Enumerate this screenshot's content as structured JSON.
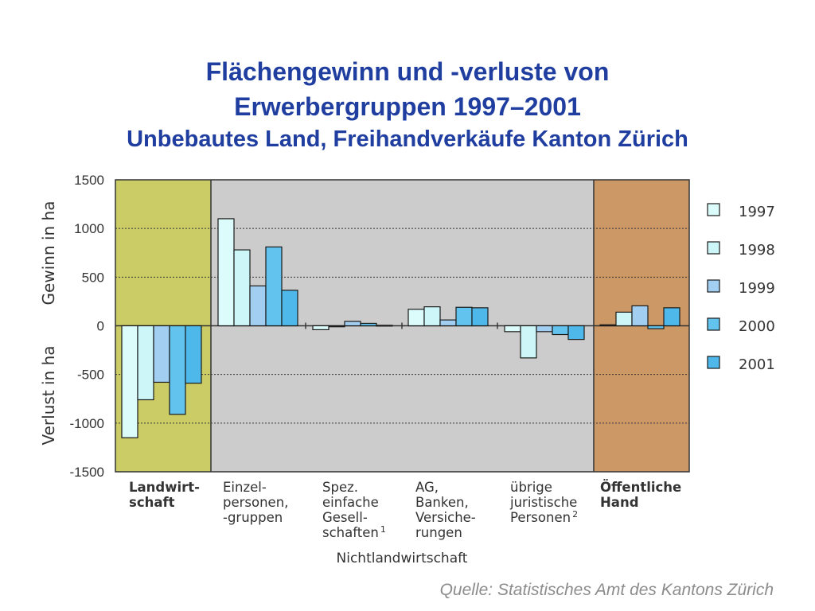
{
  "title_line1": "Flächengewinn und -verluste von",
  "title_line2": "Erwerbergruppen 1997–2001",
  "subtitle": "Unbebautes Land, Freihandverkäufe Kanton Zürich",
  "source": "Quelle: Statistisches Amt des Kantons Zürich",
  "chart_data": {
    "type": "bar",
    "ylabel_positive": "Gewinn in ha",
    "ylabel_negative": "Verlust in ha",
    "ylim": [
      -1500,
      1500
    ],
    "yticks": [
      1500,
      1000,
      500,
      0,
      -500,
      -1000,
      -1500
    ],
    "ytick_labels": [
      "1500",
      "1000",
      "500",
      "0",
      "-500",
      "-1000",
      "-1500"
    ],
    "grid": true,
    "legend_position": "right",
    "group_label": "Nichtlandwirtschaft",
    "categories": [
      {
        "label_lines": [
          "Landwirt-",
          "schaft"
        ],
        "bold": true
      },
      {
        "label_lines": [
          "Einzel-",
          "personen,",
          "-gruppen"
        ],
        "bold": false
      },
      {
        "label_lines": [
          "Spez.",
          "einfache",
          "Gesell-",
          "schaften"
        ],
        "bold": false,
        "footnote": "1"
      },
      {
        "label_lines": [
          "AG,",
          "Banken,",
          "Versiche-",
          "rungen"
        ],
        "bold": false
      },
      {
        "label_lines": [
          "übrige",
          "juristische",
          "Personen"
        ],
        "bold": false,
        "footnote": "2"
      },
      {
        "label_lines": [
          "Öffentliche",
          "Hand"
        ],
        "bold": true
      }
    ],
    "series": [
      {
        "name": "1997",
        "color": "#dcfbfb",
        "values": [
          -1150,
          1100,
          -40,
          170,
          -60,
          10
        ]
      },
      {
        "name": "1998",
        "color": "#ccf6f8",
        "values": [
          -760,
          780,
          -10,
          195,
          -330,
          140
        ]
      },
      {
        "name": "1999",
        "color": "#a2cef2",
        "values": [
          -580,
          410,
          45,
          60,
          -60,
          205
        ]
      },
      {
        "name": "2000",
        "color": "#62c3ee",
        "values": [
          -910,
          810,
          25,
          190,
          -90,
          -30
        ]
      },
      {
        "name": "2001",
        "color": "#4fb8ea",
        "values": [
          -590,
          365,
          5,
          185,
          -140,
          185
        ]
      }
    ],
    "background_colors": {
      "landwirtschaft": "#cccc66",
      "nichtlandwirtschaft": "#cccccc",
      "oeffentliche_hand": "#cc9966"
    }
  }
}
